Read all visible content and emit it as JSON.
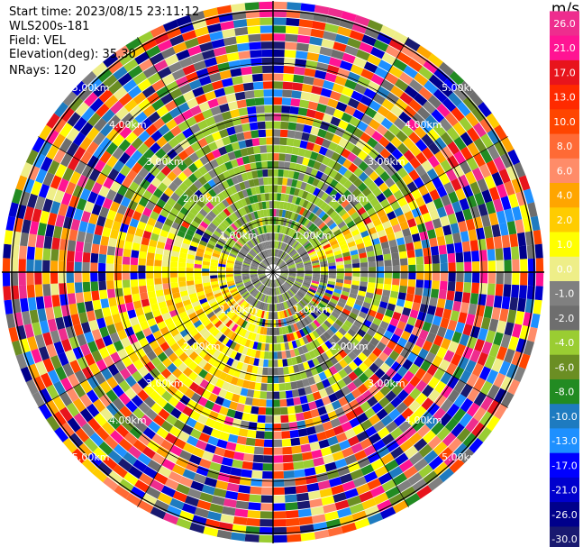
{
  "info": {
    "start_time": "Start time: 2023/08/15 23:11:12",
    "instrument": "WLS200s-181",
    "field": "Field: VEL",
    "elevation": "Elevation(deg): 35.30",
    "nrays": "NRays: 120"
  },
  "colorbar": {
    "unit": "m/s",
    "ticks": [
      "26.0",
      "21.0",
      "17.0",
      "13.0",
      "10.0",
      "8.0",
      "6.0",
      "4.0",
      "2.0",
      "1.0",
      "0.0",
      "-1.0",
      "-2.0",
      "-4.0",
      "-6.0",
      "-8.0",
      "-10.0",
      "-13.0",
      "-17.0",
      "-21.0",
      "-26.0",
      "-30.0"
    ],
    "colors": [
      "#ee2d8e",
      "#ff1493",
      "#e8141c",
      "#ff2a00",
      "#ff4500",
      "#ff6a35",
      "#ff8c69",
      "#ffa500",
      "#ffcc00",
      "#ffff00",
      "#eeee88",
      "#808080",
      "#6e6e6e",
      "#9acd32",
      "#6b8e23",
      "#228b22",
      "#1e7bc0",
      "#1e90ff",
      "#0000ff",
      "#0000cd",
      "#00008b",
      "#191970"
    ]
  },
  "chart_data": {
    "type": "heatmap",
    "subtype": "polar-ppi",
    "field": "VEL",
    "unit": "m/s",
    "nrays": 120,
    "range_ring_labels": [
      "1.00km",
      "2.00km",
      "3.00km",
      "4.00km",
      "5.00km"
    ],
    "value_range": [
      -30,
      26
    ],
    "description_of_pattern": {
      "inner_green_sector_azimuth_deg": [
        300,
        90
      ],
      "inner_yellow_sector_azimuth_deg": [
        170,
        290
      ],
      "inner_gray_near_center": true,
      "outer_noise": true
    }
  }
}
